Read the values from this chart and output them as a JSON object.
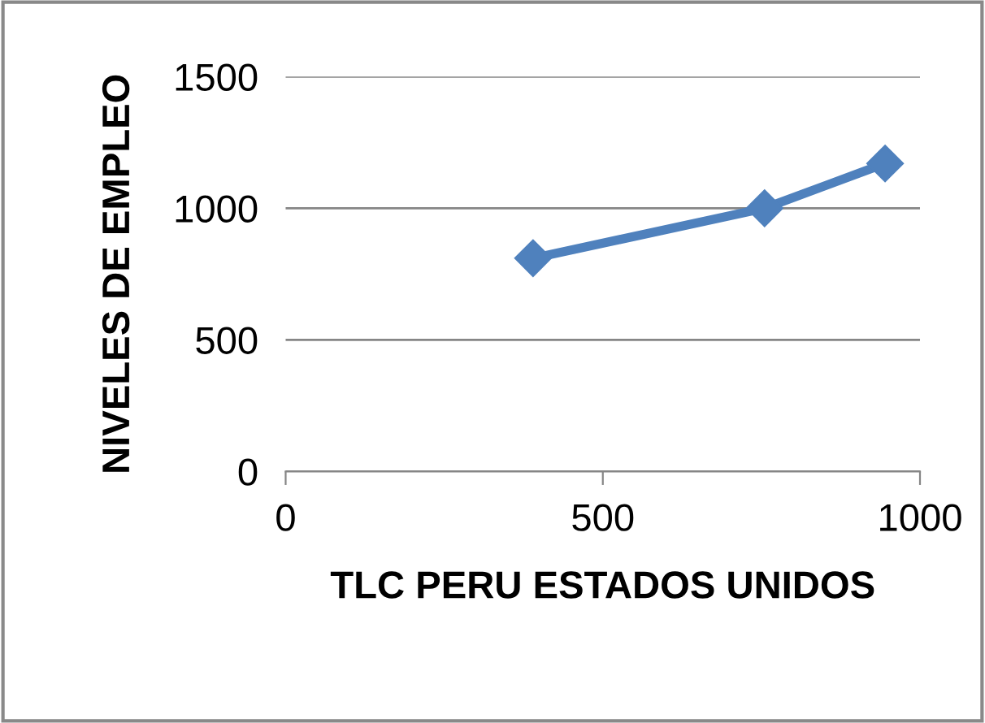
{
  "chart_data": {
    "type": "line",
    "xlabel": "TLC PERU ESTADOS UNIDOS",
    "ylabel": "NIVELES DE EMPLEO",
    "x": [
      390,
      755,
      945
    ],
    "series": [
      {
        "color": "#4f81bd",
        "values": [
          810,
          1000,
          1170
        ]
      }
    ],
    "xlim": [
      0,
      1000
    ],
    "xticks": [
      0,
      500,
      1000
    ],
    "ylim": [
      0,
      1500
    ],
    "yticks": [
      0,
      500,
      1000,
      1500
    ],
    "grid": "y",
    "marker": "diamond",
    "line_style": "solid",
    "legend": false
  }
}
